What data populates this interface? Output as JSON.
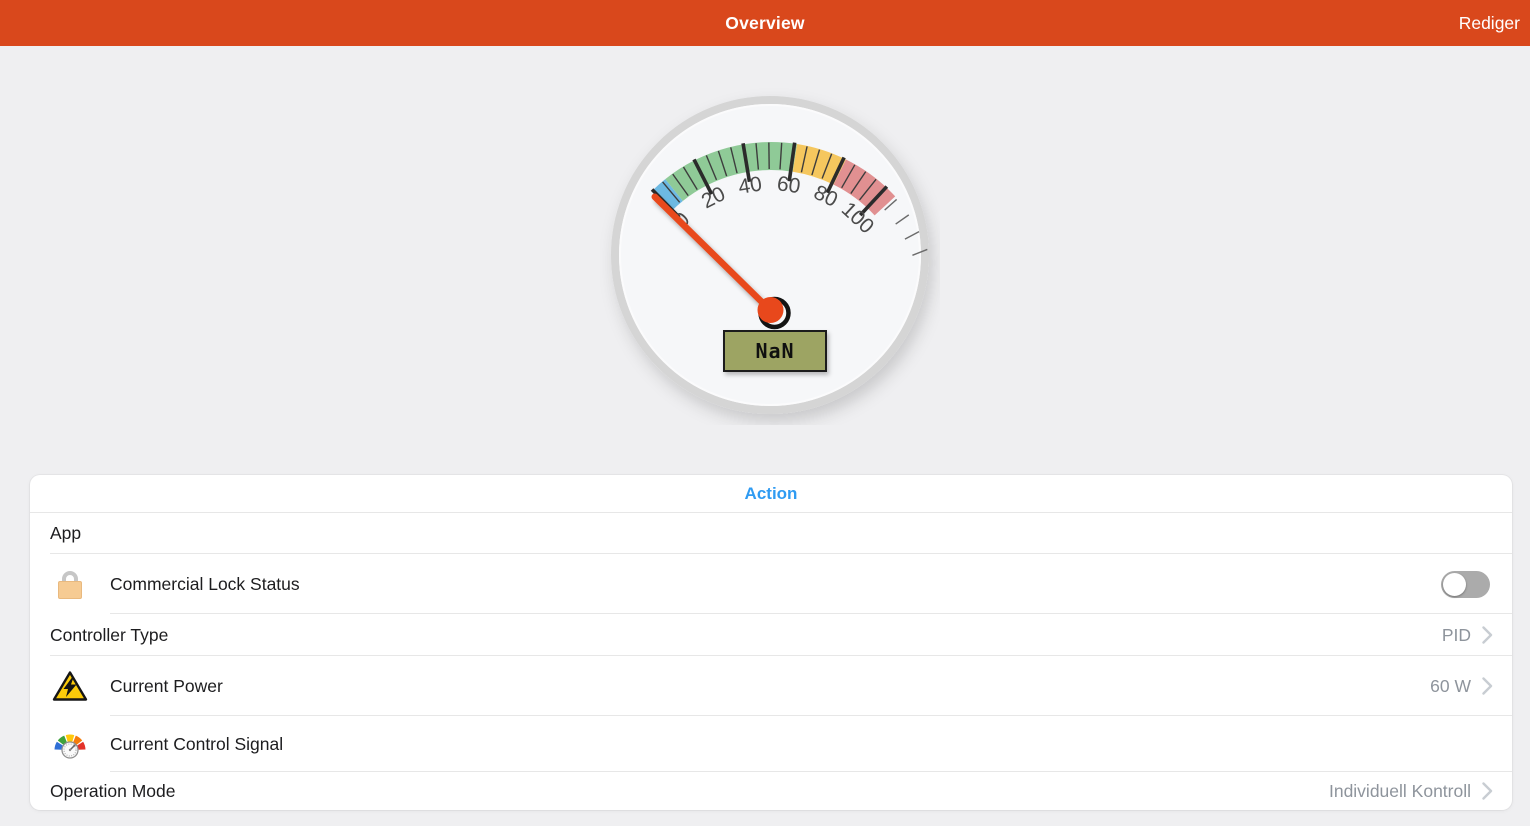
{
  "header": {
    "title": "Overview",
    "edit_button": "Rediger"
  },
  "colors": {
    "header_bg": "#d9481c",
    "accent_blue": "#2f9bf2",
    "toggle_off": "#ababab",
    "value_text": "#8e949c",
    "label_text": "#1d1d1f",
    "divider": "#e7e7e7",
    "page_bg": "#efeff1",
    "card_bg": "#ffffff"
  },
  "gauge": {
    "type": "gauge",
    "min": 0,
    "max": 100,
    "major_ticks": [
      0,
      20,
      40,
      60,
      80,
      100
    ],
    "minor_step": 5,
    "overflow_ticks": 4,
    "zones": [
      {
        "name": "blue",
        "from": 0,
        "to": 6.5,
        "color": "#6db9e2"
      },
      {
        "name": "green",
        "from": 6.5,
        "to": 61,
        "color": "#8fca97"
      },
      {
        "name": "yellow",
        "from": 61,
        "to": 81,
        "color": "#f5c75e"
      },
      {
        "name": "red",
        "from": 81,
        "to": 105,
        "color": "#e19091"
      }
    ],
    "needle_value": 0,
    "needle_color": "#e8481c",
    "label_box_color": "#9da464",
    "value_label": "NaN"
  },
  "panel": {
    "tab_label": "Action",
    "section_label": "App",
    "rows": [
      {
        "label": "Commercial Lock Status",
        "icon": "lock-icon",
        "control": "toggle",
        "toggle_on": false
      },
      {
        "label": "Controller Type",
        "value": "PID",
        "chevron": true
      },
      {
        "label": "Current Power",
        "icon": "high-voltage-warning-icon",
        "value": "60 W",
        "chevron": true
      },
      {
        "label": "Current Control Signal",
        "icon": "control-signal-gauge-icon"
      },
      {
        "label": "Operation Mode",
        "value": "Individuell Kontroll",
        "chevron": true
      }
    ]
  }
}
